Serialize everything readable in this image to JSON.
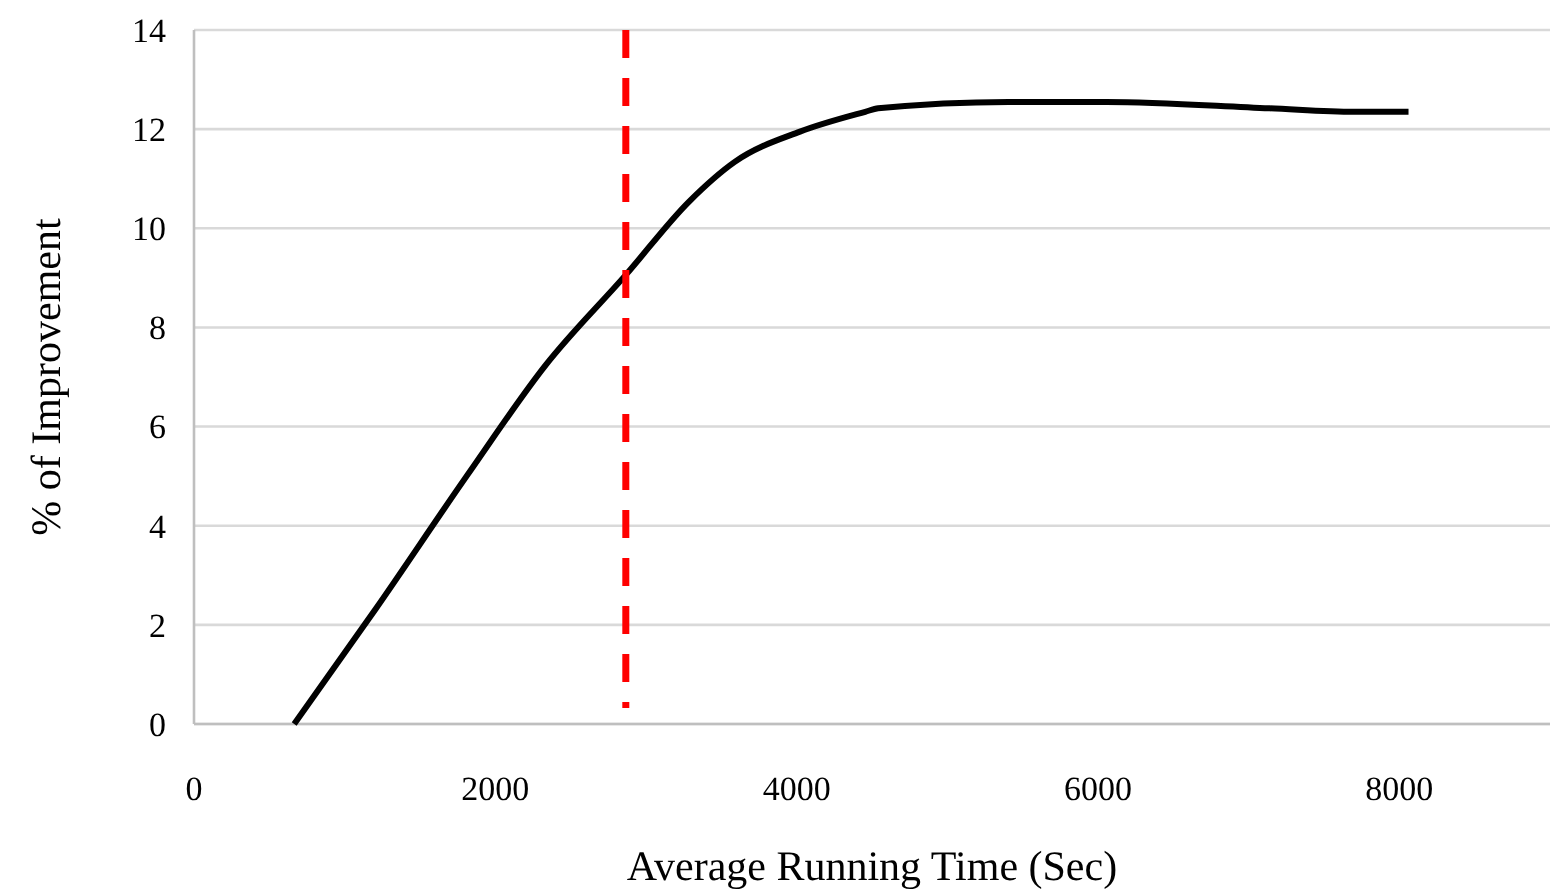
{
  "chart_data": {
    "type": "line",
    "xlabel": "Average Running Time (Sec)",
    "ylabel": "% of Improvement",
    "xlim": [
      0,
      9000
    ],
    "xticks": [
      0,
      2000,
      4000,
      6000,
      8000
    ],
    "ylim": [
      0,
      14
    ],
    "yticks": [
      0,
      2,
      4,
      6,
      8,
      10,
      12,
      14
    ],
    "grid": "y",
    "marker": "none",
    "line_style": "solid",
    "series": [
      {
        "color": "#000000",
        "x": [
          665,
          1208,
          1814,
          2334,
          2866,
          3286,
          3589,
          4022,
          4455,
          4541,
          5407,
          6056,
          7139,
          7701,
          8061
        ],
        "values": [
          0,
          2.33,
          5.02,
          7.24,
          9.06,
          10.54,
          11.34,
          11.95,
          12.35,
          12.42,
          12.55,
          12.55,
          12.42,
          12.35,
          12.35
        ]
      }
    ],
    "ref_lines": [
      {
        "axis": "x",
        "value": 2866,
        "color": "#ff0000",
        "line_style": "dashed"
      }
    ]
  }
}
